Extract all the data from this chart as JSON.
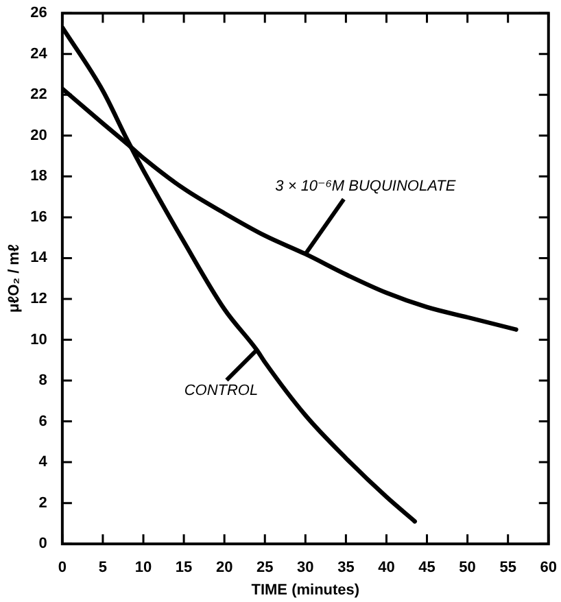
{
  "chart_data": {
    "type": "line",
    "xlabel": "TIME (minutes)",
    "ylabel": "μℓO₂ / mℓ",
    "xlim": [
      0,
      60
    ],
    "xticks": [
      0,
      5,
      10,
      15,
      20,
      25,
      30,
      35,
      40,
      45,
      50,
      55,
      60
    ],
    "ylim": [
      0,
      26
    ],
    "yticks": [
      0,
      2,
      4,
      6,
      8,
      10,
      12,
      14,
      16,
      18,
      20,
      22,
      24,
      26
    ],
    "marker": "none",
    "line_style": "solid",
    "series": [
      {
        "name": "CONTROL",
        "color": "#000000",
        "x": [
          0,
          5,
          8,
          10,
          15,
          20,
          24,
          25,
          30,
          35,
          40,
          43.5
        ],
        "values": [
          25.3,
          22.2,
          19.8,
          18.3,
          14.8,
          11.5,
          9.5,
          8.9,
          6.3,
          4.2,
          2.3,
          1.1
        ]
      },
      {
        "name": "3 × 10⁻⁶M BUQUINOLATE",
        "color": "#000000",
        "x": [
          0,
          5,
          8,
          10,
          15,
          20,
          25,
          30,
          35,
          40,
          45,
          50,
          56
        ],
        "values": [
          22.3,
          20.6,
          19.6,
          18.9,
          17.4,
          16.2,
          15.1,
          14.2,
          13.2,
          12.3,
          11.6,
          11.1,
          10.5
        ]
      }
    ]
  }
}
